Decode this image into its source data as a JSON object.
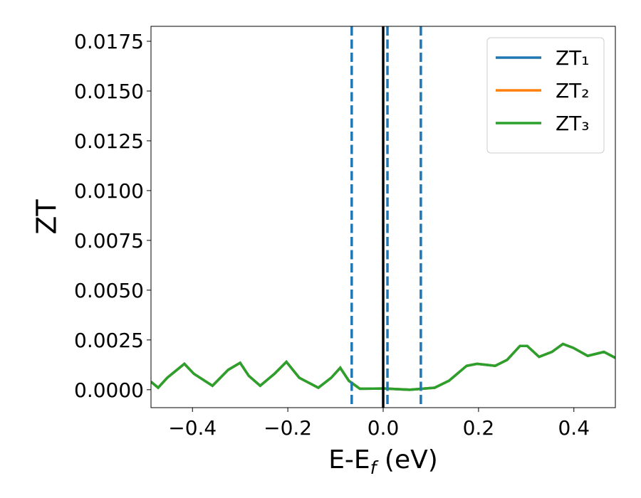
{
  "chart_data": {
    "type": "line",
    "x_label": {
      "main": "E-E",
      "sub": "f",
      "tail": " (eV)"
    },
    "y_label": "ZT",
    "x": [
      -0.487,
      -0.472,
      -0.453,
      -0.417,
      -0.397,
      -0.358,
      -0.325,
      -0.3,
      -0.282,
      -0.258,
      -0.228,
      -0.203,
      -0.176,
      -0.136,
      -0.109,
      -0.09,
      -0.072,
      -0.049,
      0.003,
      0.055,
      0.108,
      0.138,
      0.175,
      0.197,
      0.235,
      0.26,
      0.287,
      0.302,
      0.327,
      0.354,
      0.377,
      0.399,
      0.429,
      0.463,
      0.487
    ],
    "series": [
      {
        "name": "ZT₁",
        "color": "#1f77b4",
        "values": [
          0.0004,
          0.0001,
          0.0006,
          0.0013,
          0.0008,
          0.0002,
          0.001,
          0.00135,
          0.0007,
          0.0002,
          0.0008,
          0.0014,
          0.0006,
          0.0001,
          0.0006,
          0.0011,
          0.00045,
          5e-05,
          6e-05,
          0.0,
          0.0001,
          0.00045,
          0.0012,
          0.0013,
          0.0012,
          0.0015,
          0.0022,
          0.0022,
          0.00165,
          0.0019,
          0.0023,
          0.0021,
          0.0017,
          0.0019,
          0.0016
        ]
      },
      {
        "name": "ZT₂",
        "color": "#ff7f0e",
        "values": [
          0.0004,
          0.0001,
          0.0006,
          0.0013,
          0.0008,
          0.0002,
          0.001,
          0.00135,
          0.0007,
          0.0002,
          0.0008,
          0.0014,
          0.0006,
          0.0001,
          0.0006,
          0.0011,
          0.00045,
          5e-05,
          6e-05,
          0.0,
          0.0001,
          0.00045,
          0.0012,
          0.0013,
          0.0012,
          0.0015,
          0.0022,
          0.0022,
          0.00165,
          0.0019,
          0.0023,
          0.0021,
          0.0017,
          0.0019,
          0.0016
        ]
      },
      {
        "name": "ZT₃",
        "color": "#2ca02c",
        "values": [
          0.0004,
          0.0001,
          0.0006,
          0.0013,
          0.0008,
          0.0002,
          0.001,
          0.00135,
          0.0007,
          0.0002,
          0.0008,
          0.0014,
          0.0006,
          0.0001,
          0.0006,
          0.0011,
          0.00045,
          5e-05,
          6e-05,
          0.0,
          0.0001,
          0.00045,
          0.0012,
          0.0013,
          0.0012,
          0.0015,
          0.0022,
          0.0022,
          0.00165,
          0.0019,
          0.0023,
          0.0021,
          0.0017,
          0.0019,
          0.0016
        ]
      }
    ],
    "vlines": [
      {
        "x": -0.066,
        "color": "#1f77b4",
        "style": "dashed"
      },
      {
        "x": 0.009,
        "color": "#1f77b4",
        "style": "dashed"
      },
      {
        "x": 0.079,
        "color": "#1f77b4",
        "style": "dashed"
      },
      {
        "x": 0.0,
        "color": "#000000",
        "style": "solid"
      }
    ],
    "xlim": [
      -0.487,
      0.487
    ],
    "ylim": [
      -0.0009,
      0.01825
    ],
    "xticks": [
      {
        "value": -0.4,
        "label": "−0.4"
      },
      {
        "value": -0.2,
        "label": "−0.2"
      },
      {
        "value": 0.0,
        "label": "0.0"
      },
      0.2,
      0.4
    ],
    "yticks": [
      {
        "value": 0,
        "label": "0.0000"
      },
      {
        "value": 0.0025,
        "label": "0.0025"
      },
      {
        "value": 0.005,
        "label": "0.0050"
      },
      {
        "value": 0.0075,
        "label": "0.0075"
      },
      {
        "value": 0.01,
        "label": "0.0100"
      },
      {
        "value": 0.0125,
        "label": "0.0125"
      },
      {
        "value": 0.015,
        "label": "0.0150"
      },
      {
        "value": 0.0175,
        "label": "0.0175"
      }
    ],
    "legend": "upper right"
  }
}
